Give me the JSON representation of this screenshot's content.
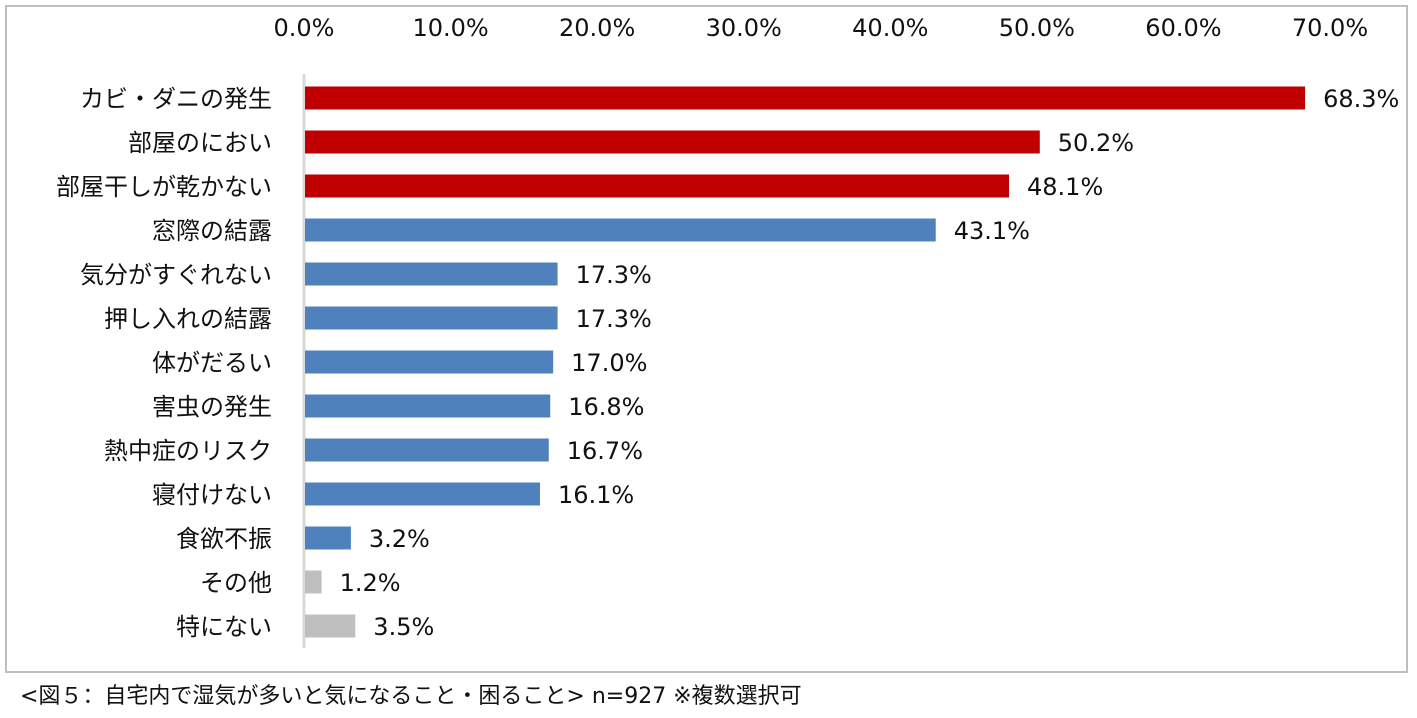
{
  "chart_data": {
    "type": "bar",
    "orientation": "horizontal",
    "categories": [
      "カビ・ダニの発生",
      "部屋のにおい",
      "部屋干しが乾かない",
      "窓際の結露",
      "気分がすぐれない",
      "押し入れの結露",
      "体がだるい",
      "害虫の発生",
      "熱中症のリスク",
      "寝付けない",
      "食欲不振",
      "その他",
      "特にない"
    ],
    "values": [
      68.3,
      50.2,
      48.1,
      43.1,
      17.3,
      17.3,
      17.0,
      16.8,
      16.7,
      16.1,
      3.2,
      1.2,
      3.5
    ],
    "value_labels": [
      "68.3%",
      "50.2%",
      "48.1%",
      "43.1%",
      "17.3%",
      "17.3%",
      "17.0%",
      "16.8%",
      "16.7%",
      "16.1%",
      "3.2%",
      "1.2%",
      "3.5%"
    ],
    "bar_colors": [
      "#c00000",
      "#c00000",
      "#c00000",
      "#4f81bd",
      "#4f81bd",
      "#4f81bd",
      "#4f81bd",
      "#4f81bd",
      "#4f81bd",
      "#4f81bd",
      "#4f81bd",
      "#bfbfbf",
      "#bfbfbf"
    ],
    "x_ticks": [
      0,
      10,
      20,
      30,
      40,
      50,
      60,
      70
    ],
    "x_tick_labels": [
      "0.0%",
      "10.0%",
      "20.0%",
      "30.0%",
      "40.0%",
      "50.0%",
      "60.0%",
      "70.0%"
    ],
    "xlim": [
      0,
      70
    ],
    "axis_position": "top",
    "grid": false,
    "legend": "none",
    "title": "",
    "xlabel": "",
    "ylabel": ""
  },
  "caption": "<図５：自宅内で湿気が多いと気になること・困ること> n=927 ※複数選択可",
  "colors": {
    "axis_line": "#d9d9d9",
    "frame_border": "#bfbfbf"
  }
}
